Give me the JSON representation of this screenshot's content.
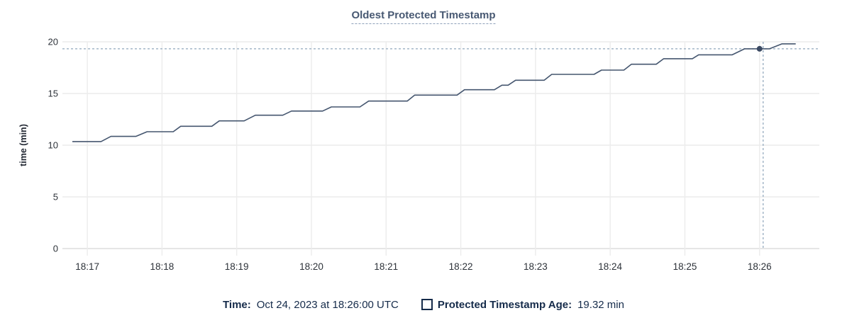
{
  "header": {
    "title": "Oldest Protected Timestamp"
  },
  "chart_data": {
    "type": "line",
    "title": "Oldest Protected Timestamp",
    "xlabel": "",
    "ylabel": "time (min)",
    "ylim": [
      0,
      20
    ],
    "y_ticks": [
      0,
      5,
      10,
      15,
      20
    ],
    "x_ticks": [
      "18:17",
      "18:18",
      "18:19",
      "18:20",
      "18:21",
      "18:22",
      "18:23",
      "18:24",
      "18:25",
      "18:26"
    ],
    "x_domain": [
      "18:16:40",
      "18:26:48"
    ],
    "grid": true,
    "legend_position": "bottom",
    "series": [
      {
        "name": "Protected Timestamp Age",
        "color": "#45566f",
        "points": [
          [
            "18:16:48",
            10.35
          ],
          [
            "18:17:11",
            10.35
          ],
          [
            "18:17:19",
            10.85
          ],
          [
            "18:17:39",
            10.85
          ],
          [
            "18:17:48",
            11.3
          ],
          [
            "18:18:09",
            11.3
          ],
          [
            "18:18:15",
            11.83
          ],
          [
            "18:18:40",
            11.83
          ],
          [
            "18:18:46",
            12.35
          ],
          [
            "18:19:06",
            12.35
          ],
          [
            "18:19:15",
            12.9
          ],
          [
            "18:19:37",
            12.9
          ],
          [
            "18:19:44",
            13.3
          ],
          [
            "18:20:09",
            13.3
          ],
          [
            "18:20:16",
            13.7
          ],
          [
            "18:20:39",
            13.7
          ],
          [
            "18:20:46",
            14.27
          ],
          [
            "18:21:17",
            14.27
          ],
          [
            "18:21:23",
            14.84
          ],
          [
            "18:21:57",
            14.84
          ],
          [
            "18:22:03",
            15.36
          ],
          [
            "18:22:27",
            15.36
          ],
          [
            "18:22:33",
            15.8
          ],
          [
            "18:22:38",
            15.8
          ],
          [
            "18:22:44",
            16.28
          ],
          [
            "18:23:07",
            16.28
          ],
          [
            "18:23:13",
            16.85
          ],
          [
            "18:23:47",
            16.85
          ],
          [
            "18:23:53",
            17.26
          ],
          [
            "18:24:11",
            17.26
          ],
          [
            "18:24:17",
            17.83
          ],
          [
            "18:24:37",
            17.83
          ],
          [
            "18:24:43",
            18.36
          ],
          [
            "18:25:06",
            18.36
          ],
          [
            "18:25:11",
            18.74
          ],
          [
            "18:25:38",
            18.74
          ],
          [
            "18:25:48",
            19.32
          ],
          [
            "18:26:08",
            19.32
          ],
          [
            "18:26:18",
            19.8
          ],
          [
            "18:26:29",
            19.8
          ]
        ]
      }
    ],
    "hover": {
      "x": "18:26:00",
      "y": 19.32
    }
  },
  "legend": {
    "time_label": "Time:",
    "time_value": "Oct 24, 2023 at 18:26:00 UTC",
    "series_label": "Protected Timestamp Age:",
    "series_value": "19.32 min"
  },
  "colors": {
    "line": "#45566f",
    "dot": "#3b4a63",
    "title": "#475872",
    "legend_text": "#152b4a",
    "grid": "#ececec",
    "zero_line": "#dedede",
    "crosshair": "#a3b6c7",
    "tick_text": "#2d3239"
  }
}
